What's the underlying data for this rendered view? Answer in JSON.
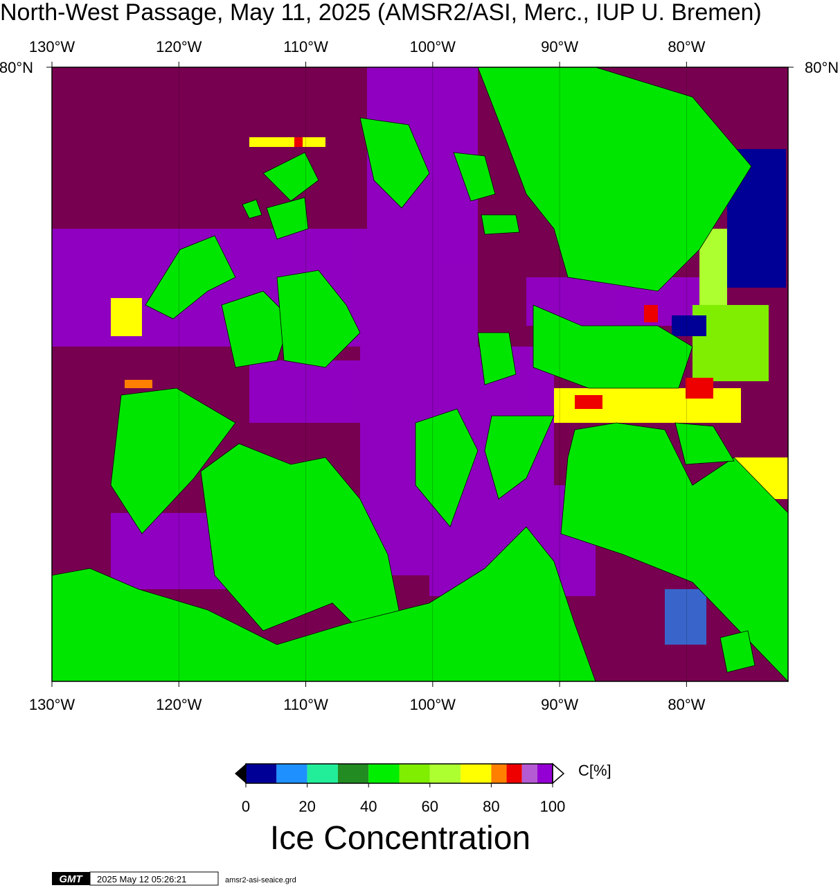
{
  "title": "North-West Passage, May 11, 2025 (AMSR2/ASI, Merc., IUP U. Bremen)",
  "map": {
    "projection": "mercator",
    "xlim": [
      -130,
      -72
    ],
    "ylim": [
      67,
      80
    ],
    "xticks": [
      {
        "value": -130,
        "label": "130°W"
      },
      {
        "value": -120,
        "label": "120°W"
      },
      {
        "value": -110,
        "label": "110°W"
      },
      {
        "value": -100,
        "label": "100°W"
      },
      {
        "value": -90,
        "label": "90°W"
      },
      {
        "value": -80,
        "label": "80°W"
      }
    ],
    "yticks": [
      {
        "value": 80,
        "label": "80°N"
      }
    ],
    "water_color": "#780050",
    "land_color": "#00e600"
  },
  "colorbar": {
    "bounds": [
      0,
      10,
      20,
      30,
      40,
      50,
      60,
      70,
      80,
      85,
      90,
      95,
      100
    ],
    "colors": [
      "#000096",
      "#1e90ff",
      "#22ee9a",
      "#228b22",
      "#00ee00",
      "#7fee00",
      "#adff2f",
      "#ffff00",
      "#ff7f00",
      "#ee0000",
      "#b45ad2",
      "#9400d3"
    ],
    "ticks": [
      0,
      20,
      40,
      60,
      80,
      100
    ],
    "unit": "C[%]",
    "title": "Ice Concentration"
  },
  "footer": {
    "logo": "GMT",
    "timestamp": "2025 May 12 05:26:21",
    "file": "amsr2-asi-seaice.grd"
  }
}
